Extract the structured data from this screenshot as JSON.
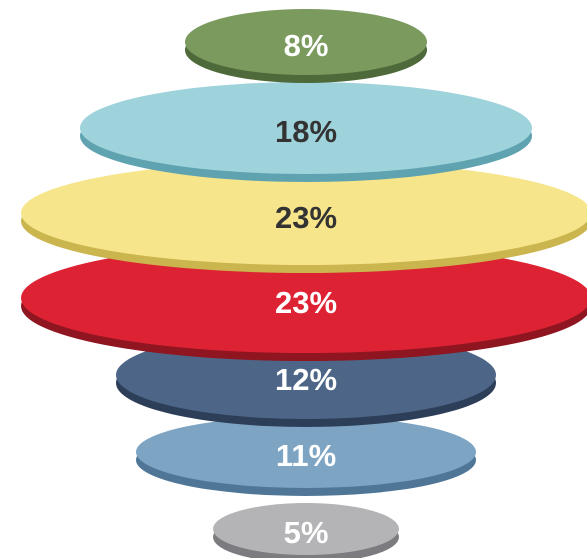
{
  "chart_data": {
    "type": "stacked-ellipse",
    "title": "",
    "segments": [
      {
        "value": 8,
        "label": "8%",
        "fill": "#7a9a5e",
        "edge": "#4e6a3a",
        "text_color": "#ffffff"
      },
      {
        "value": 18,
        "label": "18%",
        "fill": "#9fd3dc",
        "edge": "#5fa2b0",
        "text_color": "#333333"
      },
      {
        "value": 23,
        "label": "23%",
        "fill": "#f6e58a",
        "edge": "#cbb54e",
        "text_color": "#333333"
      },
      {
        "value": 23,
        "label": "23%",
        "fill": "#dd2333",
        "edge": "#8f1520",
        "text_color": "#ffffff"
      },
      {
        "value": 12,
        "label": "12%",
        "fill": "#4d6687",
        "edge": "#2d3f58",
        "text_color": "#ffffff"
      },
      {
        "value": 11,
        "label": "11%",
        "fill": "#7ea4c3",
        "edge": "#4f7697",
        "text_color": "#ffffff"
      },
      {
        "value": 5,
        "label": "5%",
        "fill": "#b4b4b7",
        "edge": "#7c7c80",
        "text_color": "#ffffff"
      }
    ]
  }
}
